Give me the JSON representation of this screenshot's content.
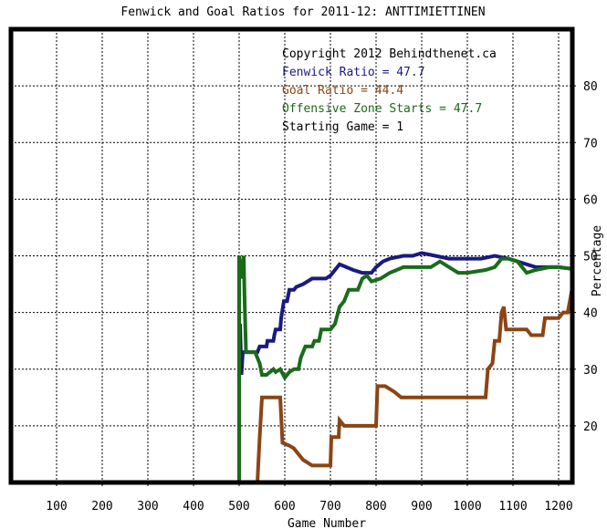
{
  "chart_data": {
    "type": "line",
    "title": "Fenwick and Goal Ratios for 2011-12: ANTTIMIETTINEN",
    "xlabel": "Game Number",
    "ylabel": "Percentage",
    "xlim": [
      0,
      1230
    ],
    "ylim": [
      10,
      90
    ],
    "xticks": [
      100,
      200,
      300,
      400,
      500,
      600,
      700,
      800,
      900,
      1000,
      1100,
      1200
    ],
    "yticks": [
      20,
      30,
      40,
      50,
      60,
      70,
      80
    ],
    "grid": true,
    "legend_position": "top-right",
    "annotations": [
      {
        "text": "Copyright 2012 Behindthenet.ca",
        "color": "#000000"
      },
      {
        "text": "Fenwick Ratio = 47.7",
        "color": "#1a1a80"
      },
      {
        "text": "Goal Ratio = 44.4",
        "color": "#8b4513"
      },
      {
        "text": "Offensive Zone Starts = 47.7",
        "color": "#1a6b1a"
      },
      {
        "text": "Starting Game = 1",
        "color": "#000000"
      }
    ],
    "series": [
      {
        "color": "#1a1a80",
        "points": [
          [
            500,
            30
          ],
          [
            502,
            38
          ],
          [
            505,
            29
          ],
          [
            508,
            33
          ],
          [
            520,
            33
          ],
          [
            540,
            33
          ],
          [
            545,
            34
          ],
          [
            560,
            34
          ],
          [
            562,
            35
          ],
          [
            575,
            35
          ],
          [
            577,
            36
          ],
          [
            580,
            37
          ],
          [
            590,
            37
          ],
          [
            592,
            39
          ],
          [
            598,
            42
          ],
          [
            605,
            42
          ],
          [
            610,
            44
          ],
          [
            620,
            44
          ],
          [
            625,
            44.5
          ],
          [
            640,
            45
          ],
          [
            660,
            46
          ],
          [
            690,
            46
          ],
          [
            700,
            46.5
          ],
          [
            710,
            47.5
          ],
          [
            720,
            48.5
          ],
          [
            735,
            48
          ],
          [
            750,
            47.5
          ],
          [
            770,
            47
          ],
          [
            790,
            47
          ],
          [
            800,
            48
          ],
          [
            815,
            49
          ],
          [
            830,
            49.5
          ],
          [
            860,
            50
          ],
          [
            880,
            50
          ],
          [
            900,
            50.5
          ],
          [
            930,
            50
          ],
          [
            960,
            49.5
          ],
          [
            1000,
            49.5
          ],
          [
            1030,
            49.5
          ],
          [
            1060,
            50
          ],
          [
            1090,
            49.5
          ],
          [
            1110,
            49
          ],
          [
            1130,
            48.5
          ],
          [
            1150,
            48
          ],
          [
            1175,
            48
          ],
          [
            1200,
            48
          ],
          [
            1230,
            47.7
          ]
        ]
      },
      {
        "color": "#8b4513",
        "points": [
          [
            540,
            10
          ],
          [
            545,
            18
          ],
          [
            550,
            25
          ],
          [
            555,
            25
          ],
          [
            570,
            25
          ],
          [
            590,
            25
          ],
          [
            595,
            17
          ],
          [
            610,
            16.5
          ],
          [
            620,
            16
          ],
          [
            640,
            14
          ],
          [
            660,
            13
          ],
          [
            680,
            13
          ],
          [
            700,
            13
          ],
          [
            702,
            18
          ],
          [
            718,
            18
          ],
          [
            720,
            21
          ],
          [
            730,
            20
          ],
          [
            745,
            20
          ],
          [
            770,
            20
          ],
          [
            790,
            20
          ],
          [
            800,
            20
          ],
          [
            803,
            27
          ],
          [
            820,
            27
          ],
          [
            840,
            26
          ],
          [
            855,
            25
          ],
          [
            880,
            25
          ],
          [
            920,
            25
          ],
          [
            960,
            25
          ],
          [
            1000,
            25
          ],
          [
            1040,
            25
          ],
          [
            1045,
            30
          ],
          [
            1055,
            31
          ],
          [
            1060,
            35
          ],
          [
            1070,
            35
          ],
          [
            1075,
            40
          ],
          [
            1080,
            41
          ],
          [
            1085,
            37
          ],
          [
            1100,
            37
          ],
          [
            1130,
            37
          ],
          [
            1140,
            36
          ],
          [
            1165,
            36
          ],
          [
            1170,
            39
          ],
          [
            1200,
            39
          ],
          [
            1210,
            40
          ],
          [
            1220,
            40
          ],
          [
            1230,
            44.4
          ]
        ]
      },
      {
        "color": "#1a6b1a",
        "points": [
          [
            500,
            10
          ],
          [
            500,
            50
          ],
          [
            505,
            46
          ],
          [
            510,
            50
          ],
          [
            512,
            42
          ],
          [
            515,
            33
          ],
          [
            525,
            33
          ],
          [
            535,
            33
          ],
          [
            545,
            31
          ],
          [
            550,
            29
          ],
          [
            560,
            29
          ],
          [
            575,
            30
          ],
          [
            580,
            29.5
          ],
          [
            590,
            30
          ],
          [
            600,
            28.5
          ],
          [
            610,
            29.5
          ],
          [
            620,
            30
          ],
          [
            630,
            30
          ],
          [
            635,
            32
          ],
          [
            645,
            34
          ],
          [
            660,
            34
          ],
          [
            665,
            35
          ],
          [
            675,
            35
          ],
          [
            680,
            37
          ],
          [
            700,
            37
          ],
          [
            710,
            38
          ],
          [
            720,
            41
          ],
          [
            730,
            42
          ],
          [
            740,
            44
          ],
          [
            760,
            44
          ],
          [
            770,
            46
          ],
          [
            780,
            46.5
          ],
          [
            790,
            45.5
          ],
          [
            810,
            46
          ],
          [
            830,
            47
          ],
          [
            860,
            48
          ],
          [
            900,
            48
          ],
          [
            920,
            48
          ],
          [
            940,
            49
          ],
          [
            960,
            48
          ],
          [
            980,
            47
          ],
          [
            1000,
            47
          ],
          [
            1040,
            47.5
          ],
          [
            1060,
            48
          ],
          [
            1075,
            49.5
          ],
          [
            1090,
            49.5
          ],
          [
            1110,
            49
          ],
          [
            1130,
            47
          ],
          [
            1150,
            47.5
          ],
          [
            1180,
            48
          ],
          [
            1200,
            48
          ],
          [
            1230,
            47.7
          ]
        ]
      }
    ]
  }
}
